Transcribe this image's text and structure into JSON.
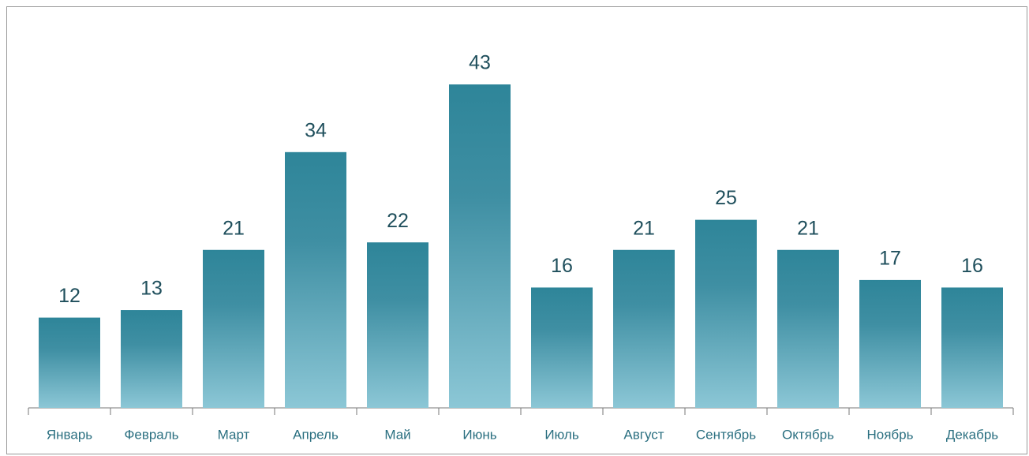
{
  "chart_data": {
    "type": "bar",
    "categories": [
      "Январь",
      "Февраль",
      "Март",
      "Апрель",
      "Май",
      "Июнь",
      "Июль",
      "Август",
      "Сентябрь",
      "Октябрь",
      "Ноябрь",
      "Декабрь"
    ],
    "values": [
      12,
      13,
      21,
      34,
      22,
      43,
      16,
      21,
      25,
      21,
      17,
      16
    ],
    "color": "#2e8599"
  }
}
